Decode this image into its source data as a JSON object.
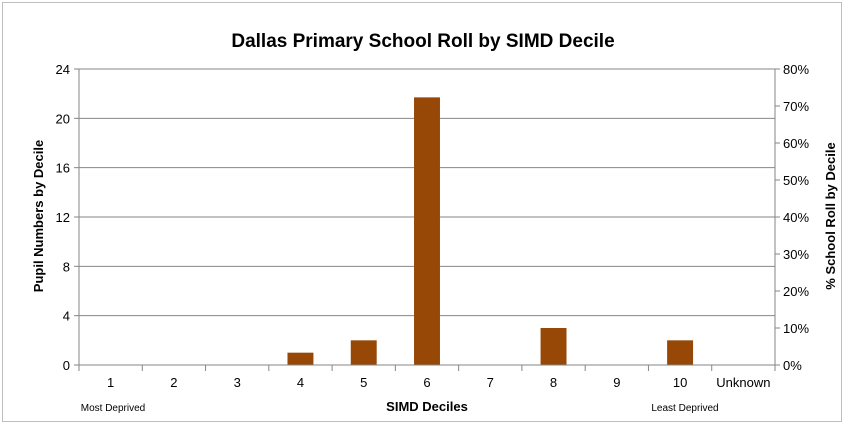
{
  "chart_data": {
    "type": "bar",
    "title": "Dallas Primary School Roll by SIMD Decile",
    "xlabel": "SIMD Deciles",
    "ylabel": "Pupil Numbers by Decile",
    "y2label": "% School Roll by Decile",
    "categories": [
      "1",
      "2",
      "3",
      "4",
      "5",
      "6",
      "7",
      "8",
      "9",
      "10",
      "Unknown"
    ],
    "values": [
      0,
      0,
      0,
      1,
      2,
      21.7,
      0,
      3,
      0,
      2,
      0
    ],
    "ylim": [
      0,
      24
    ],
    "yticks": [
      "0",
      "4",
      "8",
      "12",
      "16",
      "20",
      "24"
    ],
    "y2lim": [
      0,
      80
    ],
    "y2ticks": [
      "0%",
      "10%",
      "20%",
      "30%",
      "40%",
      "50%",
      "60%",
      "70%",
      "80%"
    ],
    "grid": true,
    "bar_color": "#974706",
    "x_notes": {
      "left": "Most Deprived",
      "right": "Least Deprived"
    }
  }
}
